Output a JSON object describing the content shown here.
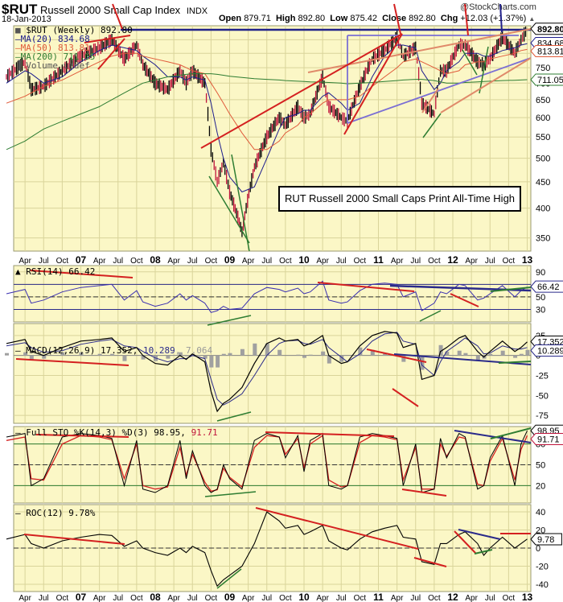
{
  "header": {
    "symbol": "$RUT",
    "name": "Russell 2000 Small Cap Index",
    "exchange": "INDX",
    "date": "18-Jan-2013",
    "open_label": "Open",
    "open": "879.71",
    "high_label": "High",
    "high": "892.80",
    "low_label": "Low",
    "low": "875.42",
    "close_label": "Close",
    "close": "892.80",
    "chg_label": "Chg",
    "chg": "+12.03 (+1.37%)",
    "watermark": "@StockCharts.com"
  },
  "annotation": "RUT Russell 2000 Small Caps Print All-Time High",
  "colors": {
    "plot_bg": "#fbf7c6",
    "grid": "#d9d49a",
    "ma20": "#1c1c8c",
    "ma50": "#e05a3a",
    "ma200": "#2e7d32",
    "price_up": "#000000",
    "price_down": "#c0143c",
    "trend_red": "#d42020",
    "trend_green": "#2e7d32",
    "trend_purple": "#7b6fd4",
    "resistance_navy": "#22228a"
  },
  "chart_data": [
    {
      "type": "line",
      "title": "$RUT (Weekly) 892.80",
      "panel": "price",
      "scale": "log",
      "legend": [
        {
          "name": "$RUT (Weekly)",
          "value": "892.80"
        },
        {
          "name": "MA(20)",
          "value": "834.68"
        },
        {
          "name": "MA(50)",
          "value": "813.81"
        },
        {
          "name": "MA(200)",
          "value": "711.05"
        },
        {
          "name": "Volume undef",
          "value": ""
        }
      ],
      "y_ticks": [
        350,
        400,
        450,
        500,
        550,
        600,
        650,
        700,
        750,
        800,
        850
      ],
      "y_range": [
        330,
        900
      ],
      "last_value_tags": [
        "892.80",
        "834.68",
        "813.81",
        "711.05"
      ],
      "x_ticks": [
        "Apr",
        "Jul",
        "Oct",
        "07",
        "Apr",
        "Jul",
        "Oct",
        "08",
        "Apr",
        "Jul",
        "Oct",
        "09",
        "Apr",
        "Jul",
        "Oct",
        "10",
        "Apr",
        "Jul",
        "Oct",
        "11",
        "Apr",
        "Jul",
        "Oct",
        "12",
        "Apr",
        "Jul",
        "Oct",
        "13"
      ],
      "x": [
        "2006-01",
        "2006-04",
        "2006-05",
        "2006-07",
        "2006-10",
        "2007-01",
        "2007-04",
        "2007-06",
        "2007-08",
        "2007-10",
        "2007-11",
        "2008-01",
        "2008-03",
        "2008-05",
        "2008-06",
        "2008-07",
        "2008-09",
        "2008-10",
        "2008-11",
        "2008-12",
        "2009-01",
        "2009-03",
        "2009-05",
        "2009-07",
        "2009-09",
        "2009-10",
        "2009-12",
        "2010-01",
        "2010-02",
        "2010-04",
        "2010-05",
        "2010-07",
        "2010-08",
        "2010-10",
        "2010-12",
        "2011-02",
        "2011-04",
        "2011-05",
        "2011-07",
        "2011-08",
        "2011-10",
        "2011-11",
        "2011-12",
        "2012-02",
        "2012-03",
        "2012-05",
        "2012-06",
        "2012-07",
        "2012-09",
        "2012-11",
        "2012-12",
        "2013-01"
      ],
      "series": [
        {
          "name": "$RUT",
          "values": [
            720,
            770,
            680,
            690,
            740,
            790,
            820,
            850,
            780,
            830,
            760,
            700,
            680,
            740,
            700,
            740,
            700,
            520,
            450,
            490,
            430,
            360,
            480,
            550,
            600,
            580,
            630,
            600,
            610,
            720,
            630,
            600,
            590,
            690,
            780,
            810,
            860,
            790,
            820,
            640,
            610,
            740,
            740,
            830,
            830,
            770,
            760,
            780,
            860,
            800,
            850,
            892
          ]
        },
        {
          "name": "MA(20)",
          "values": [
            700,
            740,
            730,
            700,
            720,
            770,
            810,
            830,
            820,
            810,
            790,
            760,
            720,
            720,
            710,
            720,
            710,
            640,
            560,
            500,
            460,
            430,
            440,
            500,
            570,
            600,
            610,
            620,
            620,
            660,
            670,
            640,
            620,
            640,
            720,
            790,
            830,
            830,
            820,
            740,
            680,
            700,
            740,
            770,
            800,
            800,
            790,
            790,
            810,
            820,
            830,
            835
          ]
        },
        {
          "name": "MA(50)",
          "values": [
            640,
            660,
            670,
            690,
            710,
            740,
            770,
            790,
            800,
            800,
            790,
            780,
            770,
            760,
            750,
            740,
            730,
            700,
            670,
            640,
            610,
            560,
            520,
            520,
            540,
            560,
            580,
            600,
            610,
            640,
            650,
            650,
            650,
            660,
            690,
            720,
            750,
            770,
            780,
            770,
            750,
            740,
            730,
            740,
            760,
            770,
            770,
            780,
            790,
            800,
            810,
            814
          ]
        },
        {
          "name": "MA(200)",
          "values": [
            520,
            540,
            550,
            570,
            590,
            610,
            630,
            650,
            670,
            690,
            700,
            710,
            720,
            725,
            728,
            730,
            730,
            730,
            728,
            725,
            722,
            718,
            714,
            712,
            710,
            708,
            706,
            705,
            704,
            703,
            702,
            700,
            698,
            700,
            702,
            705,
            708,
            710,
            712,
            712,
            708,
            704,
            700,
            700,
            702,
            704,
            705,
            706,
            708,
            709,
            710,
            711
          ]
        }
      ]
    },
    {
      "type": "line",
      "title": "RSI(14) 66.42",
      "panel": "rsi",
      "y_ticks": [
        30,
        50,
        70,
        90
      ],
      "y_range": [
        10,
        100
      ],
      "last_value_tag": "66.42",
      "series": [
        {
          "name": "RSI(14)",
          "values": [
            55,
            62,
            40,
            45,
            58,
            65,
            68,
            70,
            45,
            60,
            42,
            35,
            40,
            55,
            45,
            52,
            40,
            25,
            28,
            35,
            30,
            32,
            55,
            65,
            62,
            58,
            64,
            55,
            58,
            75,
            45,
            40,
            42,
            60,
            70,
            72,
            70,
            50,
            58,
            28,
            40,
            58,
            55,
            70,
            68,
            45,
            48,
            55,
            68,
            50,
            60,
            66
          ]
        }
      ]
    },
    {
      "type": "line",
      "title": "MACD(12,26,9) 17.352, 10.289, 7.064",
      "panel": "macd",
      "y_ticks": [
        25,
        0,
        -25,
        -50,
        -75
      ],
      "y_range": [
        -85,
        40
      ],
      "last_value_tags": [
        "17.352",
        "10.289"
      ],
      "series": [
        {
          "name": "MACD",
          "values": [
            15,
            20,
            5,
            0,
            10,
            18,
            20,
            22,
            5,
            10,
            0,
            -10,
            -12,
            0,
            -5,
            2,
            -8,
            -45,
            -70,
            -60,
            -55,
            -40,
            -10,
            15,
            22,
            18,
            20,
            12,
            15,
            25,
            0,
            -10,
            -8,
            12,
            25,
            30,
            28,
            10,
            15,
            -30,
            -25,
            5,
            10,
            22,
            25,
            5,
            -2,
            5,
            18,
            5,
            10,
            17
          ]
        },
        {
          "name": "Signal",
          "values": [
            12,
            16,
            10,
            4,
            6,
            14,
            18,
            20,
            12,
            10,
            5,
            -3,
            -8,
            -4,
            -4,
            0,
            -4,
            -30,
            -55,
            -62,
            -58,
            -48,
            -25,
            0,
            15,
            18,
            19,
            15,
            14,
            20,
            10,
            -2,
            -8,
            2,
            18,
            27,
            29,
            18,
            14,
            -12,
            -25,
            -8,
            5,
            16,
            22,
            12,
            2,
            3,
            12,
            8,
            8,
            10
          ]
        },
        {
          "name": "Histogram",
          "values": [
            3,
            4,
            -5,
            -4,
            4,
            4,
            2,
            2,
            -7,
            0,
            -5,
            -7,
            -4,
            4,
            -1,
            2,
            -4,
            -15,
            -15,
            2,
            3,
            8,
            15,
            15,
            7,
            0,
            1,
            -3,
            1,
            5,
            -10,
            -8,
            0,
            10,
            7,
            3,
            -1,
            -8,
            1,
            -18,
            0,
            13,
            5,
            6,
            3,
            -7,
            -4,
            2,
            6,
            -3,
            2,
            7
          ]
        }
      ]
    },
    {
      "type": "line",
      "title": "Full STO %K(14,3) %D(3) 98.95, 91.71",
      "panel": "stochastic",
      "y_ticks": [
        20,
        50,
        80
      ],
      "y_range": [
        0,
        100
      ],
      "last_value_tags": [
        "98.95",
        "91.71"
      ],
      "series": [
        {
          "name": "%K",
          "values": [
            90,
            95,
            20,
            30,
            90,
            95,
            92,
            88,
            20,
            85,
            15,
            10,
            20,
            85,
            30,
            70,
            20,
            10,
            15,
            50,
            30,
            15,
            85,
            95,
            90,
            60,
            92,
            40,
            85,
            95,
            20,
            15,
            20,
            90,
            95,
            92,
            88,
            20,
            80,
            10,
            15,
            88,
            60,
            95,
            90,
            15,
            20,
            60,
            92,
            20,
            80,
            99
          ]
        },
        {
          "name": "%D",
          "values": [
            85,
            90,
            30,
            28,
            80,
            92,
            90,
            86,
            30,
            80,
            20,
            15,
            18,
            75,
            35,
            65,
            25,
            12,
            14,
            45,
            32,
            18,
            75,
            92,
            90,
            65,
            88,
            45,
            80,
            92,
            28,
            18,
            20,
            82,
            92,
            90,
            86,
            28,
            75,
            15,
            15,
            80,
            62,
            90,
            88,
            22,
            20,
            55,
            88,
            28,
            72,
            92
          ]
        }
      ]
    },
    {
      "type": "line",
      "title": "ROC(12) 9.78%",
      "panel": "roc",
      "y_ticks": [
        40,
        20,
        0,
        -20,
        -40
      ],
      "y_range": [
        -45,
        45
      ],
      "last_value_tag": "9.78",
      "series": [
        {
          "name": "ROC(12)",
          "values": [
            10,
            15,
            5,
            0,
            8,
            12,
            15,
            14,
            2,
            8,
            0,
            -5,
            -8,
            0,
            -5,
            2,
            -5,
            -25,
            -42,
            -35,
            -30,
            -20,
            5,
            40,
            30,
            22,
            25,
            15,
            18,
            25,
            8,
            0,
            -2,
            10,
            18,
            22,
            25,
            12,
            10,
            -15,
            -18,
            5,
            5,
            15,
            18,
            5,
            -8,
            0,
            12,
            0,
            5,
            10
          ]
        }
      ]
    }
  ]
}
